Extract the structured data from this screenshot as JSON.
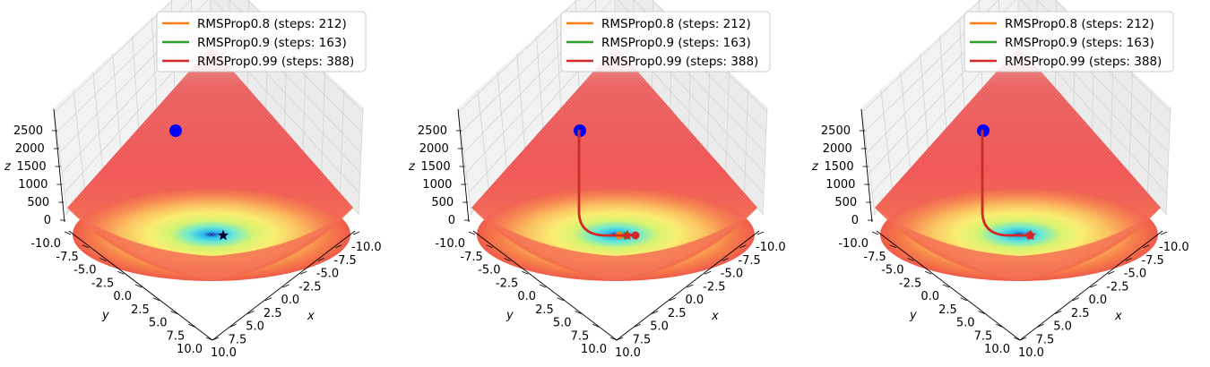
{
  "chart_data": [
    {
      "type": "surface3d",
      "axes": {
        "x": {
          "label": "x",
          "ticks": [
            "-10.0",
            "-7.5",
            "-5.0",
            "-2.5",
            "0.0",
            "2.5",
            "5.0",
            "7.5",
            "10.0"
          ]
        },
        "y": {
          "label": "y",
          "ticks": [
            "-10.0",
            "-7.5",
            "-5.0",
            "-2.5",
            "0.0",
            "2.5",
            "5.0",
            "7.5",
            "10.0"
          ]
        },
        "z": {
          "label": "z",
          "ticks": [
            "0",
            "500",
            "1000",
            "1500",
            "2000",
            "2500"
          ]
        }
      },
      "start_point": {
        "x": -10,
        "y": -7.5,
        "z": 2300
      },
      "minimum": {
        "x": 0,
        "y": 0,
        "z": 0
      },
      "legend": [
        "RMSProp0.8 (steps: 212)",
        "RMSProp0.9 (steps: 163)",
        "RMSProp0.99 (steps: 388)"
      ],
      "series": [
        {
          "name": "RMSProp0.8 (steps: 212)",
          "color": "#ff7f0e",
          "end": {
            "x": 0.3,
            "y": 0.2
          }
        },
        {
          "name": "RMSProp0.9 (steps: 163)",
          "color": "#2ca02c",
          "end": {
            "x": 0.9,
            "y": 1.2
          }
        },
        {
          "name": "RMSProp0.99 (steps: 388)",
          "color": "#d62728",
          "end": {
            "x": 1.5,
            "y": 2.4
          }
        }
      ],
      "show_paths": false
    },
    {
      "type": "surface3d",
      "axes": {
        "x": {
          "label": "x",
          "ticks": [
            "-10.0",
            "-7.5",
            "-5.0",
            "-2.5",
            "0.0",
            "2.5",
            "5.0",
            "7.5",
            "10.0"
          ]
        },
        "y": {
          "label": "y",
          "ticks": [
            "-10.0",
            "-7.5",
            "-5.0",
            "-2.5",
            "0.0",
            "2.5",
            "5.0",
            "7.5",
            "10.0"
          ]
        },
        "z": {
          "label": "z",
          "ticks": [
            "0",
            "500",
            "1000",
            "1500",
            "2000",
            "2500"
          ]
        }
      },
      "start_point": {
        "x": -10,
        "y": -7.5,
        "z": 2300
      },
      "minimum": {
        "x": 0,
        "y": 0,
        "z": 0
      },
      "legend": [
        "RMSProp0.8 (steps: 212)",
        "RMSProp0.9 (steps: 163)",
        "RMSProp0.99 (steps: 388)"
      ],
      "series": [
        {
          "name": "RMSProp0.8 (steps: 212)",
          "color": "#ff7f0e",
          "end": {
            "x": -0.8,
            "y": 0.2
          }
        },
        {
          "name": "RMSProp0.9 (steps: 163)",
          "color": "#2ca02c",
          "end": {
            "x": 0.0,
            "y": 1.2
          }
        },
        {
          "name": "RMSProp0.99 (steps: 388)",
          "color": "#d62728",
          "end": {
            "x": 1.0,
            "y": 2.2
          }
        }
      ],
      "show_paths": true
    },
    {
      "type": "surface3d",
      "axes": {
        "x": {
          "label": "x",
          "ticks": [
            "-10.0",
            "-7.5",
            "-5.0",
            "-2.5",
            "0.0",
            "2.5",
            "5.0",
            "7.5",
            "10.0"
          ]
        },
        "y": {
          "label": "y",
          "ticks": [
            "-10.0",
            "-7.5",
            "-5.0",
            "-2.5",
            "0.0",
            "2.5",
            "5.0",
            "7.5",
            "10.0"
          ]
        },
        "z": {
          "label": "z",
          "ticks": [
            "0",
            "500",
            "1000",
            "1500",
            "2000",
            "2500"
          ]
        }
      },
      "start_point": {
        "x": -10,
        "y": -7.5,
        "z": 2300
      },
      "minimum": {
        "x": 0,
        "y": 0,
        "z": 0
      },
      "legend": [
        "RMSProp0.8 (steps: 212)",
        "RMSProp0.9 (steps: 163)",
        "RMSProp0.99 (steps: 388)"
      ],
      "series": [
        {
          "name": "RMSProp0.8 (steps: 212)",
          "color": "#ff7f0e",
          "end": {
            "x": 0.0,
            "y": 0.0
          }
        },
        {
          "name": "RMSProp0.9 (steps: 163)",
          "color": "#2ca02c",
          "end": {
            "x": 0.0,
            "y": 0.0
          }
        },
        {
          "name": "RMSProp0.99 (steps: 388)",
          "color": "#d62728",
          "end": {
            "x": 0.0,
            "y": 0.0
          }
        }
      ],
      "show_paths": true
    }
  ]
}
